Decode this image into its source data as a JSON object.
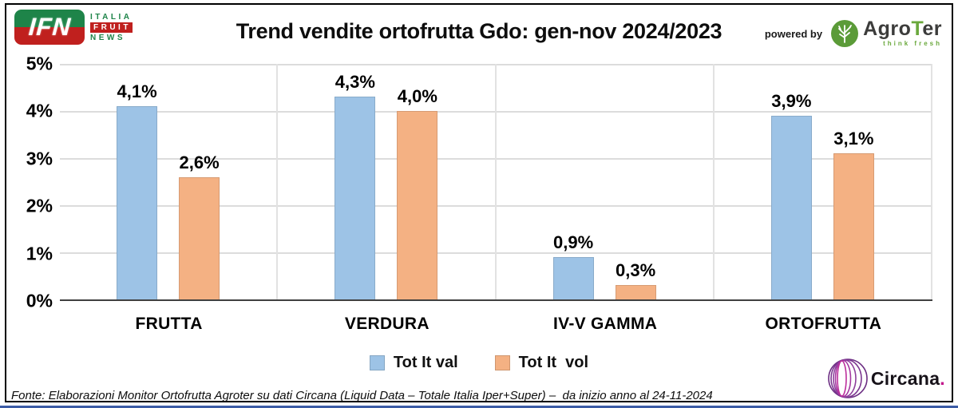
{
  "header": {
    "ifn_logo": {
      "acronym": "IFN",
      "word1": "ITALIA",
      "word2": "FRUIT",
      "word3": "NEWS"
    },
    "title": "Trend vendite ortofrutta Gdo: gen-nov 2024/2023",
    "powered_by": "powered by",
    "agroter": {
      "name_pre": "Agro",
      "name_t": "T",
      "name_post": "er",
      "tagline": "think fresh"
    }
  },
  "chart_data": {
    "type": "bar",
    "title": "Trend vendite ortofrutta Gdo: gen-nov 2024/2023",
    "categories": [
      "FRUTTA",
      "VERDURA",
      "IV-V GAMMA",
      "ORTOFRUTTA"
    ],
    "series": [
      {
        "name": "Tot It val",
        "color": "#9DC3E6",
        "values": [
          4.1,
          4.3,
          0.9,
          3.9
        ],
        "labels": [
          "4,1%",
          "4,3%",
          "0,9%",
          "3,9%"
        ]
      },
      {
        "name": "Tot It  vol",
        "color": "#F4B183",
        "values": [
          2.6,
          4.0,
          0.3,
          3.1
        ],
        "labels": [
          "2,6%",
          "4,0%",
          "0,3%",
          "3,1%"
        ]
      }
    ],
    "ylim": [
      0,
      5
    ],
    "y_ticks": [
      "5%",
      "4%",
      "3%",
      "2%",
      "1%",
      "0%"
    ],
    "grid": true,
    "legend_position": "bottom"
  },
  "footer": {
    "source": "Fonte: Elaborazioni Monitor Ortofrutta Agroter su dati Circana (Liquid Data – Totale Italia Iper+Super) –  da inizio anno al 24-11-2024",
    "circana_wordmark": "Circana",
    "circana_dot": "."
  },
  "colors": {
    "series_val_blue": "#9DC3E6",
    "series_vol_orange": "#F4B183",
    "gridline": "#DCDCDC",
    "axis": "#404040",
    "ifn_green": "#1E8449",
    "ifn_red": "#C0201E",
    "agroter_green": "#6AA83C",
    "circana_magenta": "#C2158B",
    "bottom_bar_blue": "#3B5BA5"
  }
}
